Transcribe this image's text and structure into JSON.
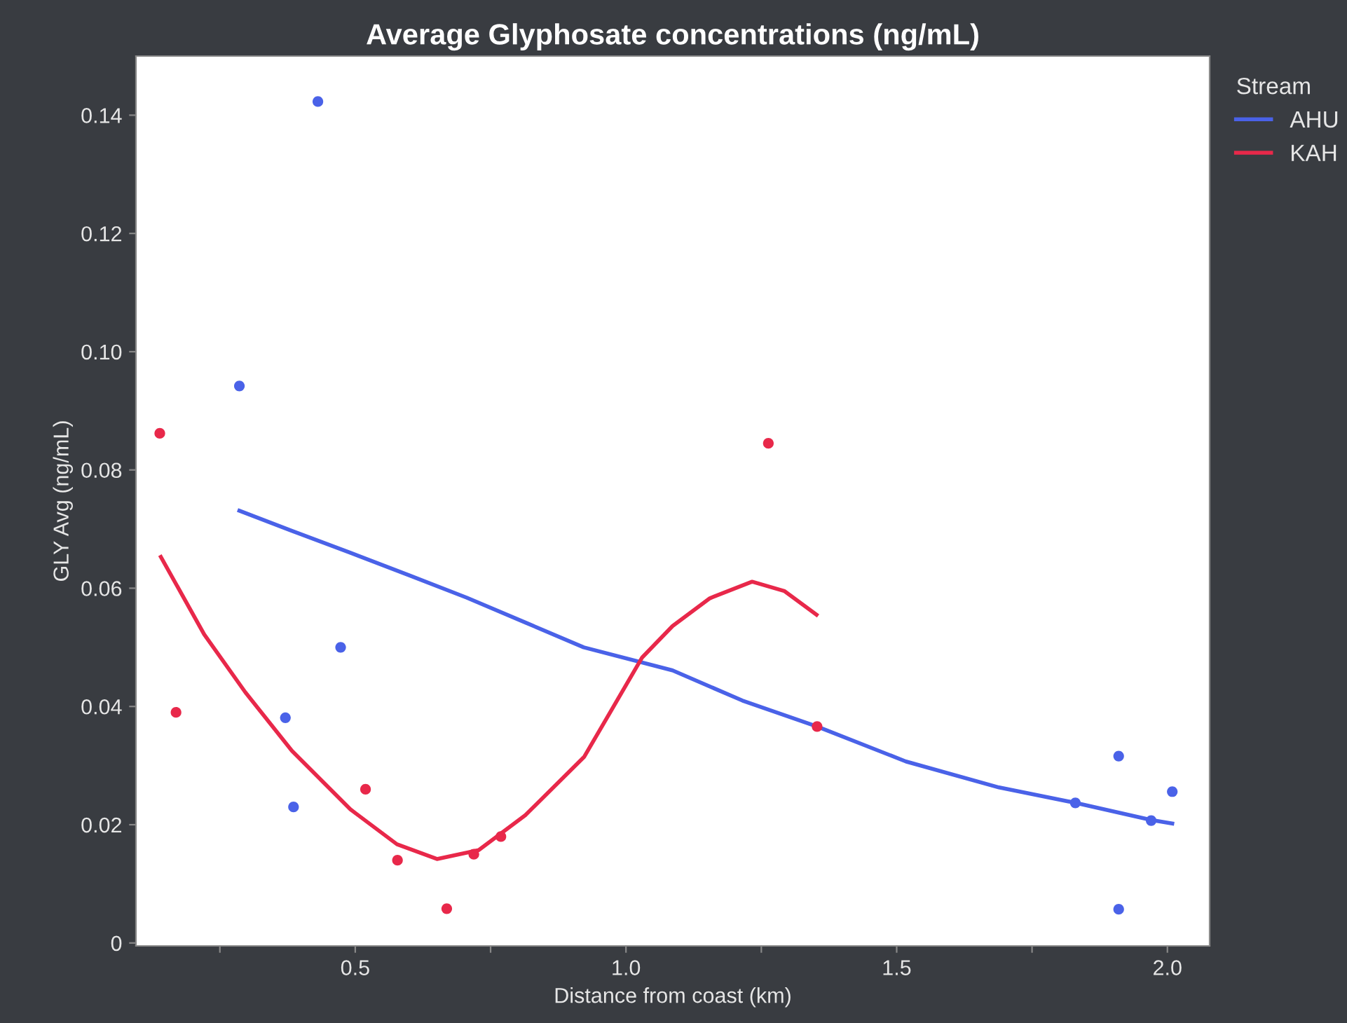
{
  "chart_data": {
    "type": "scatter",
    "title": "Average Glyphosate concentrations (ng/mL)",
    "xlabel": "Distance from coast (km)",
    "ylabel": "GLY Avg (ng/mL)",
    "legend_title": "Stream",
    "legend": "right",
    "grid": false,
    "xlim": [
      0.095,
      2.078
    ],
    "ylim": [
      -0.0005,
      0.15
    ],
    "xticks": [
      {
        "value": 0.25,
        "label": null
      },
      0.5,
      {
        "value": 0.75,
        "label": null
      },
      {
        "value": 1.0,
        "label": "1.0"
      },
      {
        "value": 1.25,
        "label": null
      },
      1.5,
      {
        "value": 1.75,
        "label": null
      },
      {
        "value": 2.0,
        "label": "2.0"
      }
    ],
    "yticks": [
      0,
      0.02,
      0.04,
      0.06,
      0.08,
      {
        "value": 0.1,
        "label": "0.10"
      },
      0.12,
      0.14
    ],
    "series": [
      {
        "marker": "circle",
        "color": "#4a62e8",
        "x": [
          0.286,
          0.431,
          0.473,
          0.371,
          0.386,
          1.83,
          1.91,
          2.009,
          1.97,
          1.91
        ],
        "values": [
          0.0942,
          0.1423,
          0.05,
          0.0381,
          0.023,
          0.0237,
          0.0316,
          0.0256,
          0.0207,
          0.0057
        ]
      },
      {
        "marker": "circle",
        "color": "#e8284a",
        "x": [
          0.139,
          0.169,
          0.519,
          0.578,
          0.669,
          0.719,
          0.769,
          1.263,
          1.353
        ],
        "values": [
          0.0862,
          0.039,
          0.026,
          0.014,
          0.0058,
          0.015,
          0.018,
          0.0845,
          0.0366
        ]
      },
      {
        "type": "line",
        "name": "AHU",
        "color": "#4a62e8",
        "x": [
          0.286,
          0.383,
          0.491,
          0.599,
          0.706,
          0.814,
          0.922,
          1.086,
          1.215,
          1.353,
          1.517,
          1.689,
          1.83,
          1.97,
          2.009
        ],
        "values": [
          0.0731,
          0.0697,
          0.066,
          0.0622,
          0.0584,
          0.0542,
          0.05,
          0.0461,
          0.041,
          0.0366,
          0.0307,
          0.0263,
          0.0237,
          0.0208,
          0.0202
        ]
      },
      {
        "type": "line",
        "name": "KAH",
        "color": "#e8284a",
        "x": [
          0.141,
          0.221,
          0.297,
          0.383,
          0.491,
          0.577,
          0.651,
          0.728,
          0.814,
          0.923,
          1.03,
          1.086,
          1.155,
          1.233,
          1.293,
          1.352
        ],
        "values": [
          0.0653,
          0.0522,
          0.0424,
          0.0325,
          0.0226,
          0.0167,
          0.0142,
          0.0157,
          0.0216,
          0.0315,
          0.0483,
          0.0536,
          0.0583,
          0.0611,
          0.0595,
          0.0555
        ]
      }
    ]
  }
}
